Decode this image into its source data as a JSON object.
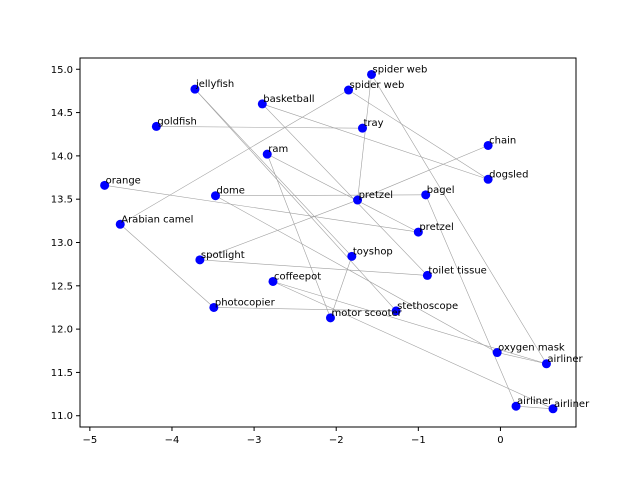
{
  "chart_data": {
    "type": "scatter",
    "title": "",
    "xlabel": "",
    "ylabel": "",
    "xlim": [
      -5.12,
      0.92
    ],
    "ylim": [
      10.87,
      15.13
    ],
    "xticks": [
      -5,
      -4,
      -3,
      -2,
      -1,
      0
    ],
    "xtick_labels": [
      "−5",
      "−4",
      "−3",
      "−2",
      "−1",
      "0"
    ],
    "yticks": [
      11.0,
      11.5,
      12.0,
      12.5,
      13.0,
      13.5,
      14.0,
      14.5,
      15.0
    ],
    "ytick_labels": [
      "11.0",
      "11.5",
      "12.0",
      "12.5",
      "13.0",
      "13.5",
      "14.0",
      "14.5",
      "15.0"
    ],
    "grid": false,
    "marker_color": "#0000ff",
    "line_color": "#a0a0a0",
    "points": [
      {
        "label": "spider web",
        "x": -1.57,
        "y": 14.94
      },
      {
        "label": "jellyfish",
        "x": -3.72,
        "y": 14.77
      },
      {
        "label": "spider web",
        "x": -1.85,
        "y": 14.76
      },
      {
        "label": "basketball",
        "x": -2.9,
        "y": 14.6
      },
      {
        "label": "goldfish",
        "x": -4.19,
        "y": 14.34
      },
      {
        "label": "tray",
        "x": -1.68,
        "y": 14.32
      },
      {
        "label": "chain",
        "x": -0.15,
        "y": 14.12
      },
      {
        "label": "ram",
        "x": -2.84,
        "y": 14.02
      },
      {
        "label": "dogsled",
        "x": -0.15,
        "y": 13.73
      },
      {
        "label": "orange",
        "x": -4.82,
        "y": 13.66
      },
      {
        "label": "dome",
        "x": -3.47,
        "y": 13.54
      },
      {
        "label": "bagel",
        "x": -0.91,
        "y": 13.55
      },
      {
        "label": "pretzel",
        "x": -1.74,
        "y": 13.49
      },
      {
        "label": "Arabian camel",
        "x": -4.63,
        "y": 13.21
      },
      {
        "label": "pretzel",
        "x": -1.0,
        "y": 13.12
      },
      {
        "label": "toyshop",
        "x": -1.81,
        "y": 12.84
      },
      {
        "label": "spotlight",
        "x": -3.66,
        "y": 12.8
      },
      {
        "label": "toilet tissue",
        "x": -0.89,
        "y": 12.62
      },
      {
        "label": "coffeepot",
        "x": -2.77,
        "y": 12.55
      },
      {
        "label": "photocopier",
        "x": -3.49,
        "y": 12.25
      },
      {
        "label": "stethoscope",
        "x": -1.27,
        "y": 12.21
      },
      {
        "label": "motor scooter",
        "x": -2.07,
        "y": 12.13
      },
      {
        "label": "oxygen mask",
        "x": -0.04,
        "y": 11.73
      },
      {
        "label": "airliner",
        "x": 0.56,
        "y": 11.6
      },
      {
        "label": "airliner",
        "x": 0.19,
        "y": 11.11
      },
      {
        "label": "airliner",
        "x": 0.64,
        "y": 11.08
      }
    ],
    "edges": [
      [
        0,
        12
      ],
      [
        1,
        20
      ],
      [
        2,
        13
      ],
      [
        3,
        8
      ],
      [
        4,
        5
      ],
      [
        6,
        12
      ],
      [
        7,
        14
      ],
      [
        7,
        21
      ],
      [
        9,
        14
      ],
      [
        10,
        11
      ],
      [
        10,
        22
      ],
      [
        11,
        24
      ],
      [
        12,
        16
      ],
      [
        13,
        19
      ],
      [
        15,
        21
      ],
      [
        16,
        17
      ],
      [
        17,
        3
      ],
      [
        18,
        23
      ],
      [
        19,
        20
      ],
      [
        22,
        23
      ],
      [
        23,
        0
      ],
      [
        24,
        25
      ],
      [
        25,
        18
      ],
      [
        2,
        8
      ],
      [
        1,
        15
      ]
    ]
  }
}
